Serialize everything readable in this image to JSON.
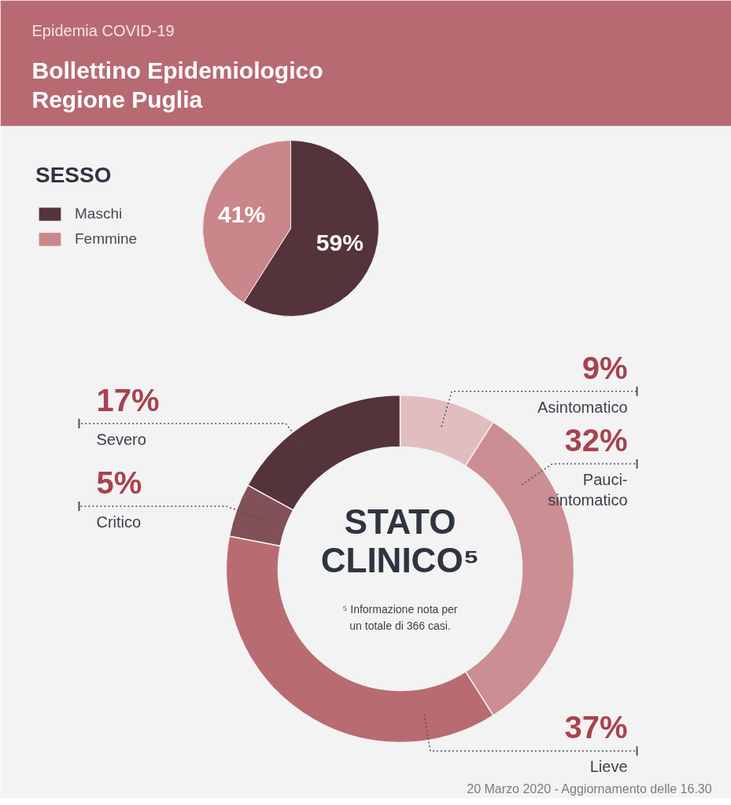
{
  "chart_data": [
    {
      "type": "pie",
      "title": "Bollettino Epidemiologico Regione Puglia",
      "subtitle": "Epidemia COVID-19",
      "legend_title": "SESSO",
      "legend": "top left",
      "categories": [
        "Maschi",
        "Femmine"
      ],
      "values": [
        59,
        41
      ],
      "colors": [
        "#55333a",
        "#c9868b"
      ],
      "value_labels": [
        "59%",
        "41%"
      ]
    },
    {
      "type": "donut",
      "title": "STATO CLINICO⁵",
      "categories": [
        "Asintomatico",
        "Pauci-sintomatico",
        "Lieve",
        "Critico",
        "Severo"
      ],
      "values": [
        9,
        32,
        37,
        5,
        17
      ],
      "colors": [
        "#e2bdc0",
        "#cb8e92",
        "#b96b72",
        "#815058",
        "#55333a"
      ],
      "value_labels": [
        "9%",
        "32%",
        "37%",
        "5%",
        "17%"
      ],
      "annotations": [
        "⁵ Informazione nota per un totale di 366 casi.",
        "20 Marzo 2020 - Aggiornamento delle 16.30"
      ]
    }
  ]
}
